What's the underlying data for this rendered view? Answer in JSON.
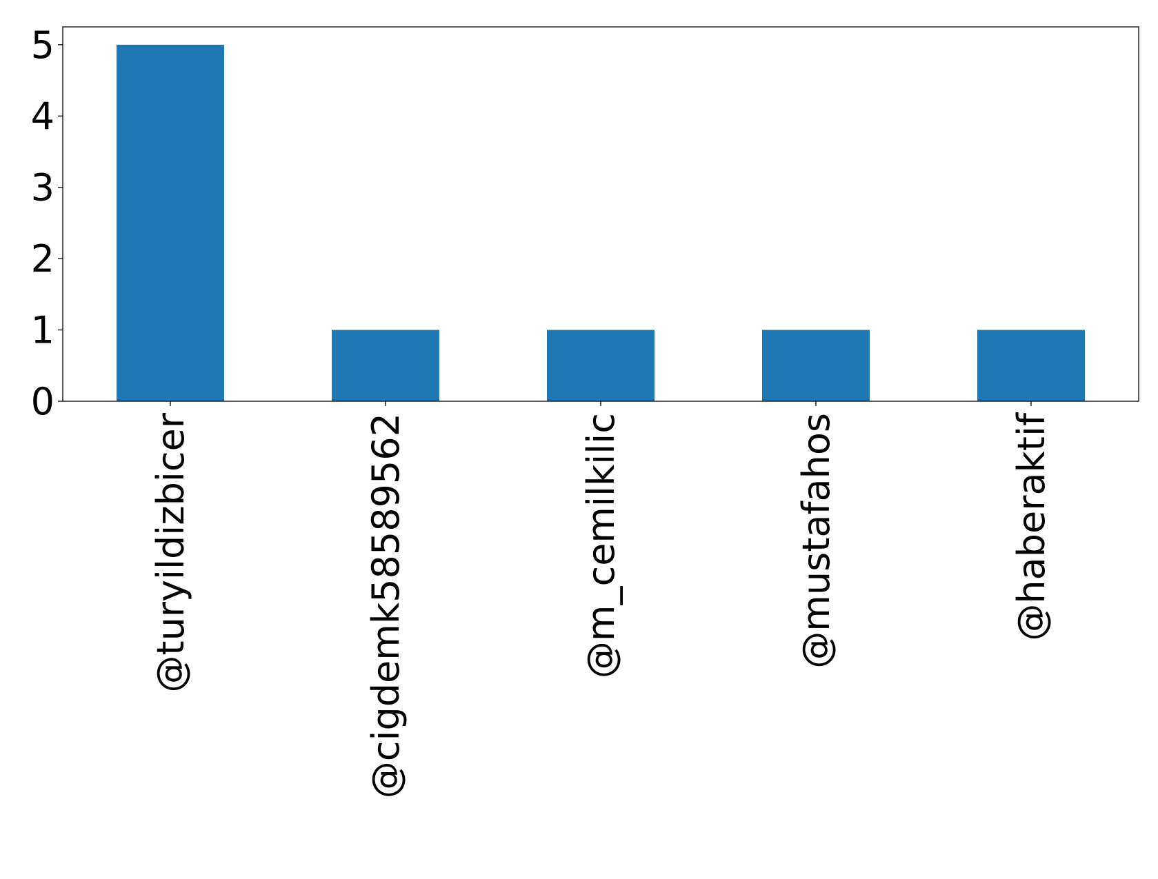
{
  "chart_data": {
    "type": "bar",
    "title": "",
    "xlabel": "",
    "ylabel": "",
    "categories": [
      "@turyildizbicer",
      "@cigdemk5858956​2",
      "@m_cemilkilic",
      "@mustafahos",
      "@haberaktif"
    ],
    "values": [
      5,
      1,
      1,
      1,
      1
    ],
    "ylim": [
      0,
      5.25
    ],
    "yticks": [
      0,
      1,
      2,
      3,
      4,
      5
    ],
    "bar_color": "#1f77b4",
    "grid": false,
    "legend": "none"
  }
}
